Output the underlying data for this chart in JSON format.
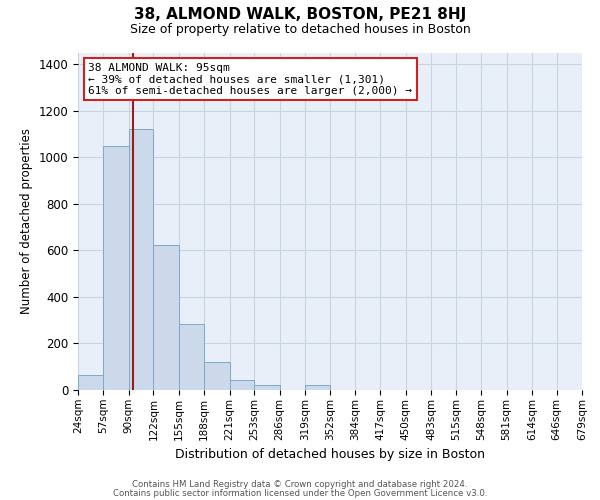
{
  "title": "38, ALMOND WALK, BOSTON, PE21 8HJ",
  "subtitle": "Size of property relative to detached houses in Boston",
  "xlabel": "Distribution of detached houses by size in Boston",
  "ylabel": "Number of detached properties",
  "bar_color": "#ccd9ea",
  "bar_edge_color": "#7aaacb",
  "background_color": "#ffffff",
  "plot_bg_color": "#e8eff8",
  "grid_color": "#c8d4e0",
  "vline_color": "#9b1c1c",
  "vline_x": 95,
  "annotation_title": "38 ALMOND WALK: 95sqm",
  "annotation_line1": "← 39% of detached houses are smaller (1,301)",
  "annotation_line2": "61% of semi-detached houses are larger (2,000) →",
  "bin_edges": [
    24,
    57,
    90,
    122,
    155,
    188,
    221,
    253,
    286,
    319,
    352,
    384,
    417,
    450,
    483,
    515,
    548,
    581,
    614,
    646,
    679
  ],
  "bar_heights": [
    65,
    1050,
    1120,
    625,
    285,
    120,
    43,
    20,
    0,
    20,
    0,
    0,
    0,
    0,
    0,
    0,
    0,
    0,
    0,
    0
  ],
  "ylim": [
    0,
    1450
  ],
  "yticks": [
    0,
    200,
    400,
    600,
    800,
    1000,
    1200,
    1400
  ],
  "footer_line1": "Contains HM Land Registry data © Crown copyright and database right 2024.",
  "footer_line2": "Contains public sector information licensed under the Open Government Licence v3.0."
}
